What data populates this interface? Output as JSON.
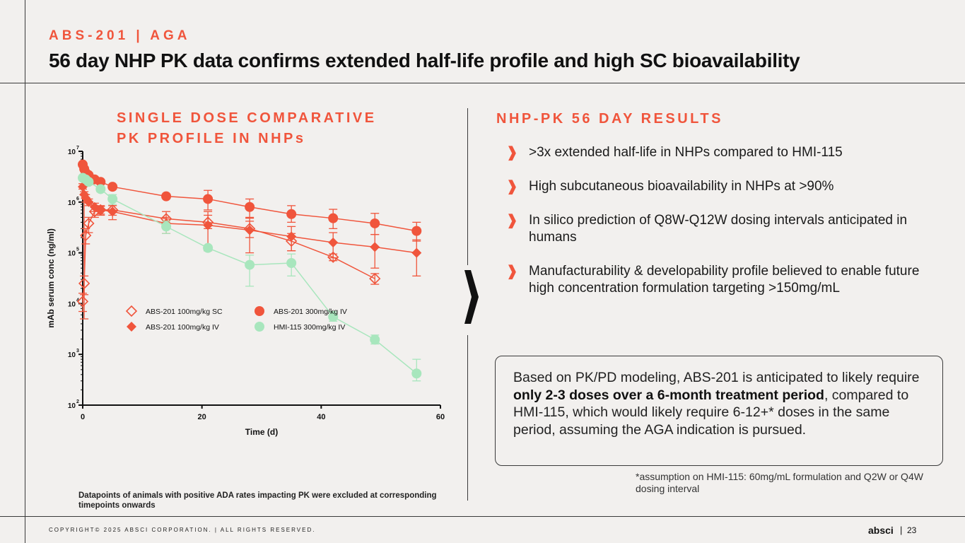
{
  "header": {
    "eyebrow": "ABS-201 | AGA",
    "title": "56 day NHP PK data confirms extended half-life profile and high SC bioavailability"
  },
  "chart_section": {
    "title_line1": "SINGLE DOSE COMPARATIVE",
    "title_line2": "PK PROFILE IN NHPs",
    "note": "Datapoints of animals with positive ADA rates impacting PK were excluded at corresponding timepoints onwards"
  },
  "results": {
    "title": "NHP-PK 56 DAY RESULTS",
    "bullet_mark": "❱",
    "bullets": [
      ">3x extended half-life in NHPs compared to HMI-115",
      "High subcutaneous bioavailability in NHPs at >90%",
      "In silico prediction of Q8W-Q12W dosing intervals anticipated in humans",
      "Manufacturability & developability profile believed to enable future high concentration formulation targeting >150mg/mL"
    ]
  },
  "model_box": {
    "text_before": "Based on PK/PD modeling, ABS-201 is anticipated to likely require ",
    "text_bold": "only 2-3 doses over a 6-month treatment period",
    "text_after": ", compared to HMI-115, which would likely require 6-12+* doses in the same period, assuming the AGA indication is pursued."
  },
  "footnote": "*assumption on HMI-115: 60mg/mL formulation and Q2W or Q4W dosing interval",
  "footer": {
    "copyright": "COPYRIGHT© 2025 ABSCI CORPORATION.  |  ALL RIGHTS RESERVED.",
    "logo": "absci",
    "separator": "|",
    "page": "23"
  },
  "colors": {
    "accent": "#f0553c",
    "hmi": "#a8e6bd",
    "text": "#1a1a1a",
    "background": "#f2f0ee"
  },
  "chart_data": {
    "type": "line",
    "xlabel": "Time (d)",
    "ylabel": "mAb serum conc (ng/ml)",
    "x_ticks": [
      0,
      20,
      40,
      60
    ],
    "y_ticks": [
      2,
      3,
      4,
      5,
      6,
      7
    ],
    "y_tick_labels": [
      "10",
      "10",
      "10",
      "10",
      "10",
      "10"
    ],
    "y_scale": "log10",
    "xlim": [
      0,
      60
    ],
    "ylim": [
      100,
      10000000
    ],
    "legend_position": "bottom",
    "series": [
      {
        "name": "ABS-201 100mg/kg SC",
        "marker": "diamond-open",
        "color": "#f0553c",
        "x": [
          0,
          0.25,
          0.5,
          1,
          2,
          3,
          5,
          14,
          21,
          28,
          35,
          42,
          49
        ],
        "y": [
          11000,
          25000,
          220000,
          380000,
          650000,
          700000,
          700000,
          470000,
          400000,
          300000,
          170000,
          82000,
          31000
        ],
        "err_low": [
          7000,
          15000,
          150000,
          250000,
          500000,
          550000,
          550000,
          320000,
          300000,
          200000,
          110000,
          70000,
          24000
        ],
        "err_high": [
          16000,
          35000,
          300000,
          500000,
          800000,
          850000,
          850000,
          650000,
          550000,
          420000,
          240000,
          95000,
          39000
        ]
      },
      {
        "name": "ABS-201 100mg/kg IV",
        "marker": "diamond-filled",
        "color": "#f0553c",
        "x": [
          0,
          0.25,
          0.5,
          1,
          2,
          3,
          5,
          14,
          21,
          28,
          35,
          42,
          49,
          56
        ],
        "y": [
          2000000,
          1400000,
          1200000,
          1000000,
          800000,
          700000,
          650000,
          380000,
          350000,
          280000,
          210000,
          160000,
          130000,
          100000
        ],
        "err_low": [
          1800000,
          5000,
          1000000,
          850000,
          650000,
          580000,
          450000,
          240000,
          110000,
          100000,
          110000,
          80000,
          50000,
          35000
        ],
        "err_high": [
          2300000,
          1600000,
          1400000,
          1150000,
          950000,
          820000,
          850000,
          500000,
          650000,
          480000,
          330000,
          250000,
          230000,
          180000
        ]
      },
      {
        "name": "ABS-201 300mg/kg IV",
        "marker": "circle-filled",
        "color": "#f0553c",
        "x": [
          0,
          0.25,
          0.5,
          1,
          2,
          3,
          5,
          14,
          21,
          28,
          35,
          42,
          49,
          56
        ],
        "y": [
          5500000,
          4500000,
          3800000,
          3400000,
          2800000,
          2500000,
          2000000,
          1300000,
          1150000,
          800000,
          580000,
          480000,
          380000,
          270000
        ],
        "err_low": [
          5000000,
          4000000,
          3400000,
          3000000,
          2500000,
          2300000,
          1800000,
          1200000,
          700000,
          500000,
          400000,
          300000,
          230000,
          170000
        ],
        "err_high": [
          6000000,
          5000000,
          4200000,
          3800000,
          3100000,
          2700000,
          2200000,
          1400000,
          1700000,
          1150000,
          850000,
          720000,
          600000,
          400000
        ]
      },
      {
        "name": "HMI-115 300mg/kg IV",
        "marker": "circle-filled",
        "color": "#a8e6bd",
        "x": [
          0,
          0.5,
          1,
          3,
          5,
          14,
          21,
          28,
          35,
          42,
          49,
          56
        ],
        "y": [
          3000000,
          2800000,
          2500000,
          1800000,
          1150000,
          330000,
          125000,
          58000,
          63000,
          5500,
          1950,
          420
        ],
        "err_low": [
          2700000,
          2500000,
          2200000,
          1600000,
          900000,
          240000,
          110000,
          22000,
          35000,
          4500,
          1600,
          300
        ],
        "err_high": [
          3300000,
          3100000,
          2800000,
          2000000,
          1400000,
          420000,
          140000,
          90000,
          95000,
          7000,
          2400,
          800
        ]
      }
    ]
  }
}
